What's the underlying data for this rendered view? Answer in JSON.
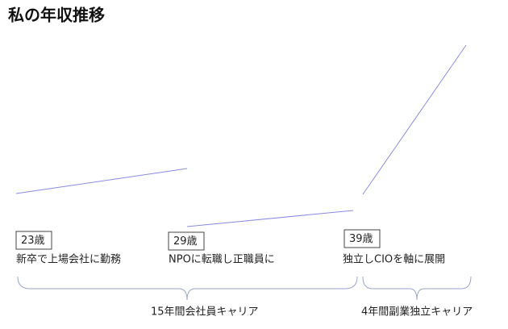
{
  "title": "私の年収推移",
  "stages": [
    {
      "age": "23歳",
      "description": "新卒で上場会社に勤務"
    },
    {
      "age": "29歳",
      "description": "NPOに転職し正職員に"
    },
    {
      "age": "39歳",
      "description": "独立しCIOを軸に展開"
    }
  ],
  "periods": [
    {
      "label": "15年間会社員キャリア"
    },
    {
      "label": "4年間副業独立キャリア"
    }
  ]
}
